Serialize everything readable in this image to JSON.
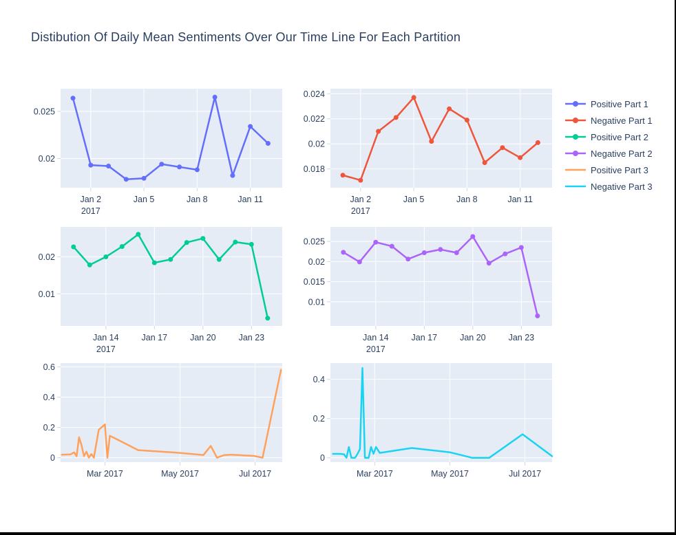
{
  "title": "Distibution Of Daily Mean Sentiments Over Our Time Line For Each Partition",
  "colors": {
    "text": "#2a3f5f",
    "plot_bg": "#E5ECF6",
    "grid": "#ffffff",
    "tick_mark": "#cdd7e5",
    "page_bg": "#ffffff",
    "positive_part_1": "#636EFA",
    "negative_part_1": "#EF553B",
    "positive_part_2": "#00CC96",
    "negative_part_2": "#AB63FA",
    "positive_part_3": "#FFA15A",
    "negative_part_3": "#19D3F3"
  },
  "legend": {
    "items": [
      {
        "label": "Positive Part 1",
        "color": "#636EFA",
        "markers": true
      },
      {
        "label": "Negative Part 1",
        "color": "#EF553B",
        "markers": true
      },
      {
        "label": "Positive Part 2",
        "color": "#00CC96",
        "markers": true
      },
      {
        "label": "Negative Part 2",
        "color": "#AB63FA",
        "markers": true
      },
      {
        "label": "Positive Part 3",
        "color": "#FFA15A",
        "markers": false
      },
      {
        "label": "Negative Part 3",
        "color": "#19D3F3",
        "markers": false
      }
    ]
  },
  "chart_data": [
    {
      "id": "pos1",
      "type": "line",
      "series": "Positive Part 1",
      "color": "#636EFA",
      "markers": true,
      "x_unit": "day of January 2017",
      "x": [
        1,
        2,
        3,
        4,
        5,
        6,
        7,
        8,
        9,
        10,
        11,
        12
      ],
      "y": [
        0.0264,
        0.0193,
        0.0192,
        0.0178,
        0.0179,
        0.0194,
        0.0191,
        0.0188,
        0.0265,
        0.0182,
        0.0234,
        0.0216
      ],
      "xticks": [
        {
          "v": 2,
          "label": "Jan 2",
          "sublabel": "2017"
        },
        {
          "v": 5,
          "label": "Jan 5"
        },
        {
          "v": 8,
          "label": "Jan 8"
        },
        {
          "v": 11,
          "label": "Jan 11"
        }
      ],
      "yticks": [
        {
          "v": 0.02,
          "label": "0.02"
        },
        {
          "v": 0.025,
          "label": "0.025"
        }
      ],
      "xrange": [
        0.3,
        12.8
      ],
      "yrange": [
        0.0169,
        0.0274
      ]
    },
    {
      "id": "neg1",
      "type": "line",
      "series": "Negative Part 1",
      "color": "#EF553B",
      "markers": true,
      "x_unit": "day of January 2017",
      "x": [
        1,
        2,
        3,
        4,
        5,
        6,
        7,
        8,
        9,
        10,
        11,
        12
      ],
      "y": [
        0.0175,
        0.0171,
        0.021,
        0.0221,
        0.0237,
        0.0202,
        0.0228,
        0.0219,
        0.0185,
        0.0197,
        0.0189,
        0.0201
      ],
      "xticks": [
        {
          "v": 2,
          "label": "Jan 2",
          "sublabel": "2017"
        },
        {
          "v": 5,
          "label": "Jan 5"
        },
        {
          "v": 8,
          "label": "Jan 8"
        },
        {
          "v": 11,
          "label": "Jan 11"
        }
      ],
      "yticks": [
        {
          "v": 0.018,
          "label": "0.018"
        },
        {
          "v": 0.02,
          "label": "0.02"
        },
        {
          "v": 0.022,
          "label": "0.022"
        },
        {
          "v": 0.024,
          "label": "0.024"
        }
      ],
      "xrange": [
        0.3,
        12.8
      ],
      "yrange": [
        0.0165,
        0.0244
      ]
    },
    {
      "id": "pos2",
      "type": "line",
      "series": "Positive Part 2",
      "color": "#00CC96",
      "markers": true,
      "x_unit": "day of January 2017",
      "x": [
        12,
        13,
        14,
        15,
        16,
        17,
        18,
        19,
        20,
        21,
        22,
        23,
        24
      ],
      "y": [
        0.0227,
        0.0178,
        0.02,
        0.0228,
        0.0261,
        0.0184,
        0.0193,
        0.0239,
        0.025,
        0.0193,
        0.024,
        0.0234,
        0.0034
      ],
      "xticks": [
        {
          "v": 14,
          "label": "Jan 14",
          "sublabel": "2017"
        },
        {
          "v": 17,
          "label": "Jan 17"
        },
        {
          "v": 20,
          "label": "Jan 20"
        },
        {
          "v": 23,
          "label": "Jan 23"
        }
      ],
      "yticks": [
        {
          "v": 0.01,
          "label": "0.01"
        },
        {
          "v": 0.02,
          "label": "0.02"
        }
      ],
      "xrange": [
        11.2,
        24.9
      ],
      "yrange": [
        0.0013,
        0.0281
      ]
    },
    {
      "id": "neg2",
      "type": "line",
      "series": "Negative Part 2",
      "color": "#AB63FA",
      "markers": true,
      "x_unit": "day of January 2017",
      "x": [
        12,
        13,
        14,
        15,
        16,
        17,
        18,
        19,
        20,
        21,
        22,
        23,
        24
      ],
      "y": [
        0.0223,
        0.0199,
        0.0248,
        0.0238,
        0.0206,
        0.0222,
        0.023,
        0.0222,
        0.0262,
        0.0196,
        0.0219,
        0.0235,
        0.0065
      ],
      "xticks": [
        {
          "v": 14,
          "label": "Jan 14",
          "sublabel": "2017"
        },
        {
          "v": 17,
          "label": "Jan 17"
        },
        {
          "v": 20,
          "label": "Jan 20"
        },
        {
          "v": 23,
          "label": "Jan 23"
        }
      ],
      "yticks": [
        {
          "v": 0.01,
          "label": "0.01"
        },
        {
          "v": 0.015,
          "label": "0.015"
        },
        {
          "v": 0.02,
          "label": "0.02"
        },
        {
          "v": 0.025,
          "label": "0.025"
        }
      ],
      "xrange": [
        11.2,
        24.9
      ],
      "yrange": [
        0.004,
        0.0286
      ]
    },
    {
      "id": "pos3",
      "type": "line",
      "series": "Positive Part 3",
      "color": "#FFA15A",
      "markers": false,
      "x_unit": "days since 2017-02-01",
      "x": [
        -7,
        0,
        3,
        5,
        7,
        9,
        11,
        13,
        15,
        17,
        19,
        23,
        28,
        30,
        32,
        37,
        55,
        89,
        108,
        114,
        119,
        125,
        131,
        149,
        156,
        171
      ],
      "y": [
        0.02,
        0.022,
        0.035,
        0.01,
        0.135,
        0.083,
        0.01,
        0.04,
        0.0,
        0.024,
        0.0,
        0.185,
        0.22,
        0.0,
        0.145,
        0.125,
        0.05,
        0.032,
        0.018,
        0.078,
        0.0,
        0.018,
        0.02,
        0.012,
        0.0,
        0.58
      ],
      "xticks": [
        {
          "v": 28,
          "label": "Mar 2017"
        },
        {
          "v": 89,
          "label": "May 2017"
        },
        {
          "v": 150,
          "label": "Jul 2017"
        }
      ],
      "yticks": [
        {
          "v": 0,
          "label": "0"
        },
        {
          "v": 0.2,
          "label": "0.2"
        },
        {
          "v": 0.4,
          "label": "0.4"
        },
        {
          "v": 0.6,
          "label": "0.6"
        }
      ],
      "xrange": [
        -8,
        172
      ],
      "yrange": [
        -0.029,
        0.625
      ]
    },
    {
      "id": "neg3",
      "type": "line",
      "series": "Negative Part 3",
      "color": "#19D3F3",
      "markers": false,
      "x_unit": "days since 2017-02-01",
      "x": [
        -6,
        0,
        3,
        5,
        7,
        9,
        12,
        14,
        16,
        18,
        20,
        23,
        25,
        27,
        29,
        32,
        58,
        89,
        107,
        121,
        148,
        172
      ],
      "y": [
        0.02,
        0.02,
        0.018,
        0.0,
        0.055,
        0.0,
        0.0,
        0.02,
        0.045,
        0.458,
        0.0,
        0.0,
        0.055,
        0.02,
        0.055,
        0.025,
        0.05,
        0.028,
        0.0,
        0.0,
        0.12,
        0.008
      ],
      "xticks": [
        {
          "v": 28,
          "label": "Mar 2017"
        },
        {
          "v": 89,
          "label": "May 2017"
        },
        {
          "v": 150,
          "label": "Jul 2017"
        }
      ],
      "yticks": [
        {
          "v": 0,
          "label": "0"
        },
        {
          "v": 0.2,
          "label": "0.2"
        },
        {
          "v": 0.4,
          "label": "0.4"
        }
      ],
      "xrange": [
        -8,
        172
      ],
      "yrange": [
        -0.022,
        0.483
      ]
    }
  ]
}
